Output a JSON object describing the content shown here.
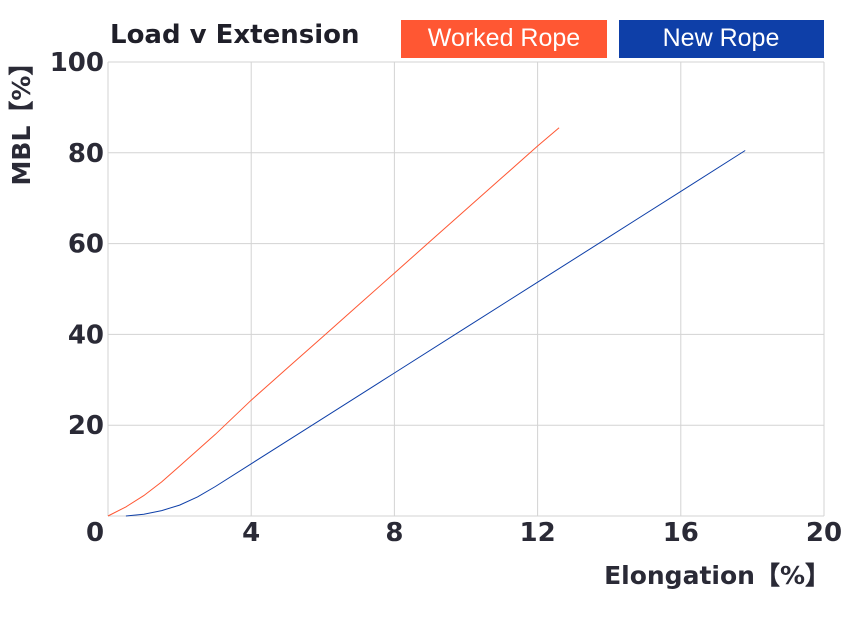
{
  "chart_data": {
    "type": "line",
    "title": "Load v Extension",
    "xlabel": "Elongation【%】",
    "ylabel": "MBL【%】",
    "xlim": [
      0,
      20
    ],
    "ylim": [
      0,
      100
    ],
    "x_ticks": [
      "0",
      "4",
      "8",
      "12",
      "16",
      "20"
    ],
    "y_ticks": [
      "20",
      "40",
      "60",
      "80",
      "100"
    ],
    "grid": true,
    "legend_position": "top-right",
    "series": [
      {
        "name": "Worked Rope",
        "color": "#ff5733",
        "x": [
          0,
          0.5,
          1,
          1.5,
          2,
          3,
          4,
          5,
          6,
          7,
          8,
          9,
          10,
          11,
          12,
          12.6
        ],
        "y": [
          0,
          2,
          4.5,
          7.5,
          11,
          18,
          25.5,
          32.5,
          39.5,
          46.5,
          53.5,
          60.5,
          67.5,
          74.5,
          81.5,
          85.5
        ]
      },
      {
        "name": "New Rope",
        "color": "#0e3fa8",
        "x": [
          0.5,
          1,
          1.5,
          2,
          2.5,
          3,
          4,
          6,
          8,
          10,
          12,
          14,
          16,
          17.8
        ],
        "y": [
          0,
          0.4,
          1.2,
          2.4,
          4.2,
          6.5,
          11.5,
          21.5,
          31.5,
          41.5,
          51.5,
          61.5,
          71.5,
          80.5
        ]
      }
    ]
  }
}
